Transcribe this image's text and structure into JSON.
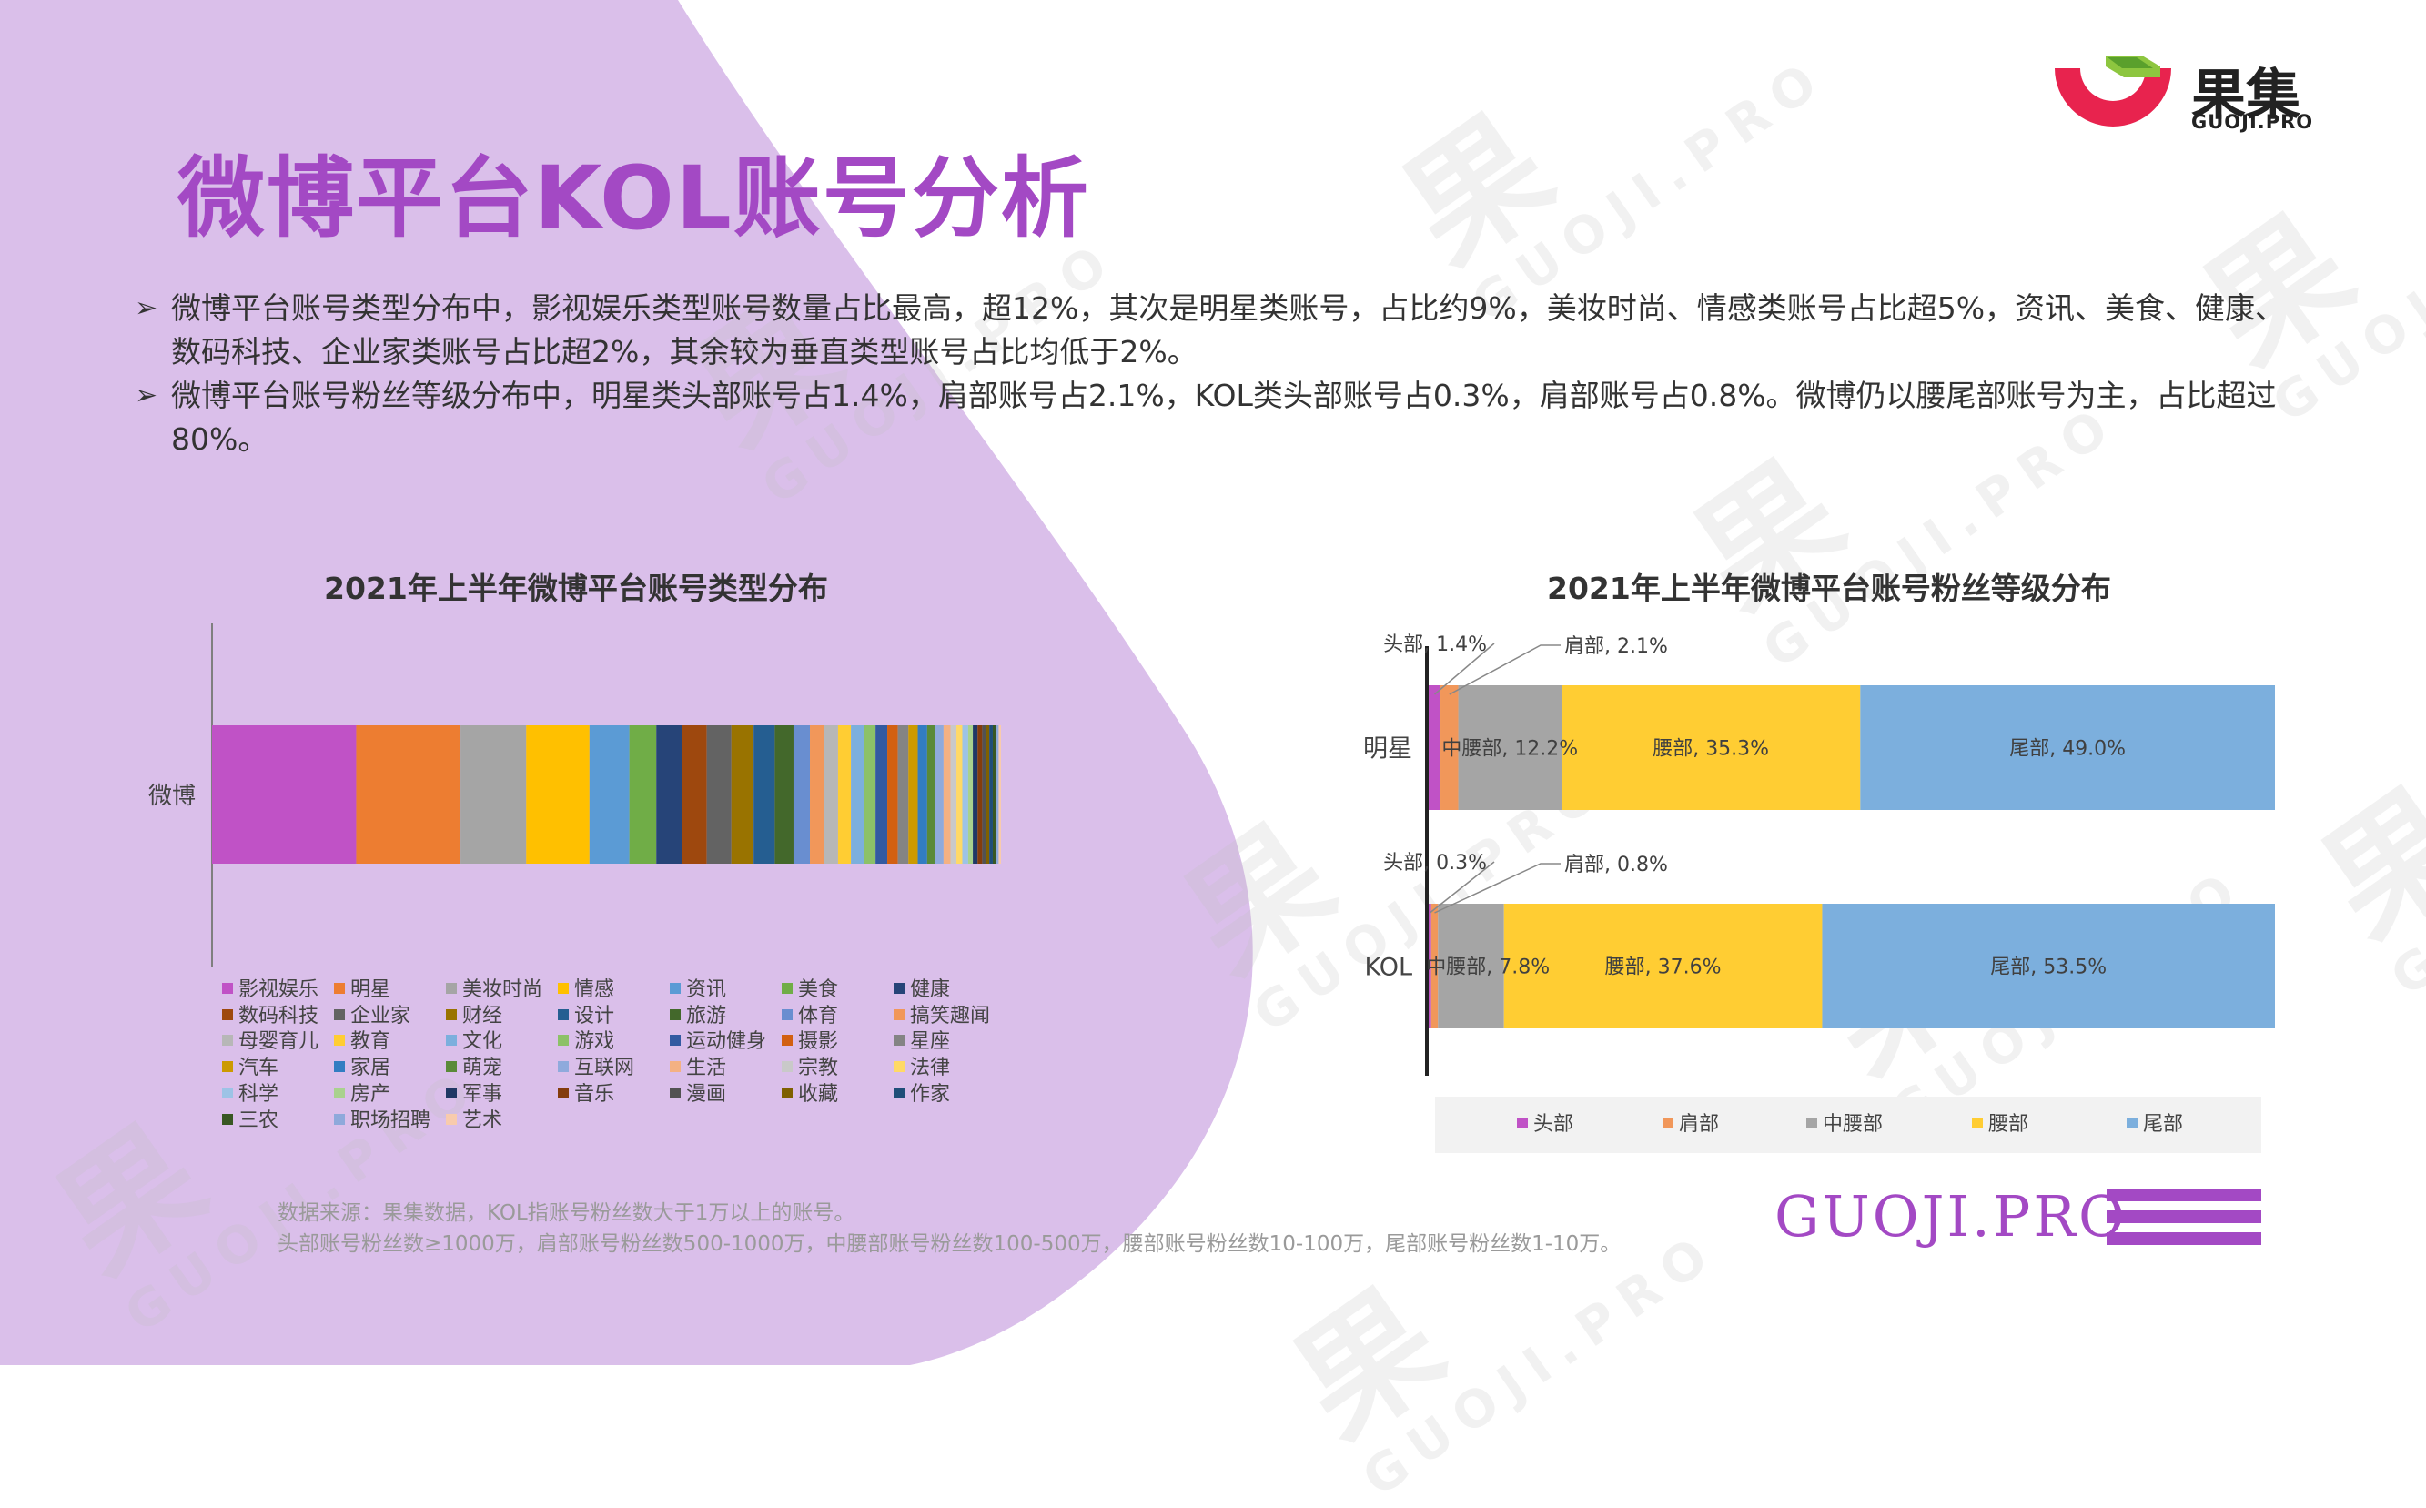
{
  "header": {
    "title": "微博平台KOL账号分析",
    "logo_text": "果集",
    "logo_sub": "GUOJI.PRO"
  },
  "bullets": [
    "微博平台账号类型分布中，影视娱乐类型账号数量占比最高，超12%，其次是明星类账号，占比约9%，美妆时尚、情感类账号占比超5%，资讯、美食、健康、数码科技、企业家类账号占比超2%，其余较为垂直类型账号占比均低于2%。",
    "微博平台账号粉丝等级分布中，明星类头部账号占1.4%，肩部账号占2.1%，KOL类头部账号占0.3%，肩部账号占0.8%。微博仍以腰尾部账号为主，占比超过80%。"
  ],
  "bullet_marker": "➢",
  "chart_data": [
    {
      "type": "bar",
      "orientation": "horizontal-stacked",
      "title": "2021年上半年微博平台账号类型分布",
      "categories": [
        "微博"
      ],
      "series": [
        {
          "name": "影视娱乐",
          "values": [
            12.3
          ],
          "color": "#c052c6"
        },
        {
          "name": "明星",
          "values": [
            8.9
          ],
          "color": "#ed7d31"
        },
        {
          "name": "美妆时尚",
          "values": [
            5.6
          ],
          "color": "#a5a5a5"
        },
        {
          "name": "情感",
          "values": [
            5.4
          ],
          "color": "#ffc000"
        },
        {
          "name": "资讯",
          "values": [
            3.4
          ],
          "color": "#5b9bd5"
        },
        {
          "name": "美食",
          "values": [
            2.3
          ],
          "color": "#70ad47"
        },
        {
          "name": "健康",
          "values": [
            2.2
          ],
          "color": "#264478"
        },
        {
          "name": "数码科技",
          "values": [
            2.1
          ],
          "color": "#9e480e"
        },
        {
          "name": "企业家",
          "values": [
            2.1
          ],
          "color": "#636363"
        },
        {
          "name": "财经",
          "values": [
            1.9
          ],
          "color": "#997300"
        },
        {
          "name": "设计",
          "values": [
            1.8
          ],
          "color": "#255e91"
        },
        {
          "name": "旅游",
          "values": [
            1.6
          ],
          "color": "#43682b"
        },
        {
          "name": "体育",
          "values": [
            1.4
          ],
          "color": "#698ed0"
        },
        {
          "name": "搞笑趣闻",
          "values": [
            1.2
          ],
          "color": "#f1975a"
        },
        {
          "name": "母婴育儿",
          "values": [
            1.2
          ],
          "color": "#b7b7b7"
        },
        {
          "name": "教育",
          "values": [
            1.1
          ],
          "color": "#ffcd33"
        },
        {
          "name": "文化",
          "values": [
            1.1
          ],
          "color": "#7cafdd"
        },
        {
          "name": "游戏",
          "values": [
            1.0
          ],
          "color": "#8cc168"
        },
        {
          "name": "运动健身",
          "values": [
            1.0
          ],
          "color": "#335aa1"
        },
        {
          "name": "摄影",
          "values": [
            0.9
          ],
          "color": "#d26012"
        },
        {
          "name": "星座",
          "values": [
            0.9
          ],
          "color": "#848484"
        },
        {
          "name": "汽车",
          "values": [
            0.8
          ],
          "color": "#cc9a00"
        },
        {
          "name": "家居",
          "values": [
            0.8
          ],
          "color": "#327dc2"
        },
        {
          "name": "萌宠",
          "values": [
            0.7
          ],
          "color": "#5a8a39"
        },
        {
          "name": "互联网",
          "values": [
            0.7
          ],
          "color": "#8faadc"
        },
        {
          "name": "生活",
          "values": [
            0.6
          ],
          "color": "#f4b183"
        },
        {
          "name": "宗教",
          "values": [
            0.5
          ],
          "color": "#c9c9c9"
        },
        {
          "name": "法律",
          "values": [
            0.5
          ],
          "color": "#ffd966"
        },
        {
          "name": "科学",
          "values": [
            0.5
          ],
          "color": "#9dc3e6"
        },
        {
          "name": "房产",
          "values": [
            0.4
          ],
          "color": "#a9d18e"
        },
        {
          "name": "军事",
          "values": [
            0.4
          ],
          "color": "#203864"
        },
        {
          "name": "音乐",
          "values": [
            0.4
          ],
          "color": "#843c0c"
        },
        {
          "name": "漫画",
          "values": [
            0.3
          ],
          "color": "#525252"
        },
        {
          "name": "收藏",
          "values": [
            0.3
          ],
          "color": "#7f6000"
        },
        {
          "name": "作家",
          "values": [
            0.3
          ],
          "color": "#1f4e79"
        },
        {
          "name": "三农",
          "values": [
            0.3
          ],
          "color": "#385723"
        },
        {
          "name": "职场招聘",
          "values": [
            0.2
          ],
          "color": "#8ea9db"
        },
        {
          "name": "艺术",
          "values": [
            0.2
          ],
          "color": "#f8cbad"
        }
      ],
      "legend_position": "bottom"
    },
    {
      "type": "bar",
      "orientation": "horizontal-stacked-100",
      "title": "2021年上半年微博平台账号粉丝等级分布",
      "categories": [
        "明星",
        "KOL"
      ],
      "series": [
        {
          "name": "头部",
          "values": [
            1.4,
            0.3
          ],
          "color": "#c052c6"
        },
        {
          "name": "肩部",
          "values": [
            2.1,
            0.8
          ],
          "color": "#f1975a"
        },
        {
          "name": "中腰部",
          "values": [
            12.2,
            7.8
          ],
          "color": "#a5a5a5"
        },
        {
          "name": "腰部",
          "values": [
            35.3,
            37.6
          ],
          "color": "#ffcd33"
        },
        {
          "name": "尾部",
          "values": [
            49.0,
            53.5
          ],
          "color": "#7cafdd"
        }
      ],
      "data_labels": {
        "明星": [
          "头部, 1.4%",
          "肩部, 2.1%",
          "中腰部, 12.2%",
          "腰部, 35.3%",
          "尾部, 49.0%"
        ],
        "KOL": [
          "头部, 0.3%",
          "肩部, 0.8%",
          "中腰部, 7.8%",
          "腰部, 37.6%",
          "尾部, 53.5%"
        ]
      },
      "legend_position": "bottom"
    }
  ],
  "footer": {
    "source_line1": "数据来源：果集数据，KOL指账号粉丝数大于1万以上的账号。",
    "source_line2": "头部账号粉丝数≥1000万，肩部账号粉丝数500-1000万，中腰部账号粉丝数100-500万，腰部账号粉丝数10-100万，尾部账号粉丝数1-10万。",
    "brand": "GUOJI.PRO"
  },
  "watermark": {
    "big": "果",
    "small": "GUOJI.PRO"
  },
  "colors": {
    "accent": "#a349c4",
    "lavender": "#d9bfe9"
  }
}
